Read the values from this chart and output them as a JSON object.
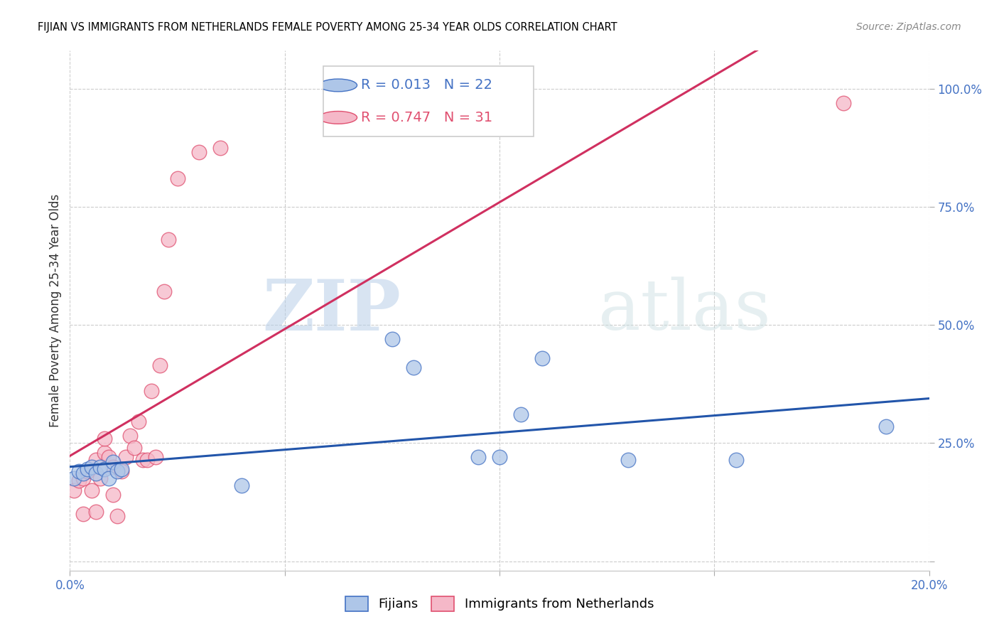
{
  "title": "FIJIAN VS IMMIGRANTS FROM NETHERLANDS FEMALE POVERTY AMONG 25-34 YEAR OLDS CORRELATION CHART",
  "source": "Source: ZipAtlas.com",
  "ylabel_label": "Female Poverty Among 25-34 Year Olds",
  "xlim": [
    0.0,
    0.2
  ],
  "ylim": [
    -0.02,
    1.08
  ],
  "fijian_color": "#aec6e8",
  "netherlands_color": "#f5b8c8",
  "fijian_edge_color": "#4472c4",
  "netherlands_edge_color": "#e05070",
  "fijian_line_color": "#2255aa",
  "netherlands_line_color": "#d03060",
  "fijian_R": 0.013,
  "fijian_N": 22,
  "netherlands_R": 0.747,
  "netherlands_N": 31,
  "watermark_zip": "ZIP",
  "watermark_atlas": "atlas",
  "fijian_x": [
    0.001,
    0.002,
    0.003,
    0.004,
    0.005,
    0.006,
    0.007,
    0.008,
    0.009,
    0.01,
    0.011,
    0.012,
    0.04,
    0.075,
    0.08,
    0.095,
    0.1,
    0.105,
    0.11,
    0.13,
    0.155,
    0.19
  ],
  "fijian_y": [
    0.175,
    0.19,
    0.185,
    0.195,
    0.2,
    0.185,
    0.2,
    0.195,
    0.175,
    0.21,
    0.19,
    0.195,
    0.16,
    0.47,
    0.41,
    0.22,
    0.22,
    0.31,
    0.43,
    0.215,
    0.215,
    0.285
  ],
  "netherlands_x": [
    0.001,
    0.002,
    0.003,
    0.003,
    0.004,
    0.005,
    0.006,
    0.006,
    0.007,
    0.008,
    0.008,
    0.009,
    0.01,
    0.01,
    0.011,
    0.012,
    0.013,
    0.014,
    0.015,
    0.016,
    0.017,
    0.018,
    0.019,
    0.02,
    0.021,
    0.022,
    0.023,
    0.025,
    0.03,
    0.035,
    0.18
  ],
  "netherlands_y": [
    0.15,
    0.17,
    0.175,
    0.1,
    0.19,
    0.15,
    0.105,
    0.215,
    0.175,
    0.23,
    0.26,
    0.22,
    0.2,
    0.14,
    0.095,
    0.19,
    0.22,
    0.265,
    0.24,
    0.295,
    0.215,
    0.215,
    0.36,
    0.22,
    0.415,
    0.57,
    0.68,
    0.81,
    0.865,
    0.875,
    0.97
  ]
}
